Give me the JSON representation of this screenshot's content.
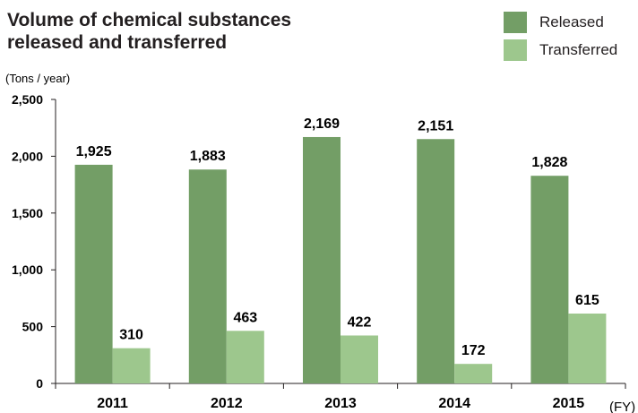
{
  "chart_data": {
    "type": "bar",
    "title_line1": "Volume of chemical substances",
    "title_line2": "released and transferred",
    "ylabel": "(Tons / year)",
    "xlabel": "(FY)",
    "categories": [
      "2011",
      "2012",
      "2013",
      "2014",
      "2015"
    ],
    "series": [
      {
        "name": "Released",
        "color": "#739e66",
        "values": [
          1925,
          1883,
          2169,
          2151,
          1828
        ],
        "labels": [
          "1,925",
          "1,883",
          "2,169",
          "2,151",
          "1,828"
        ]
      },
      {
        "name": "Transferred",
        "color": "#9dc78d",
        "values": [
          310,
          463,
          422,
          172,
          615
        ],
        "labels": [
          "310",
          "463",
          "422",
          "172",
          "615"
        ]
      }
    ],
    "ylim": [
      0,
      2500
    ],
    "yticks": [
      0,
      500,
      1000,
      1500,
      2000,
      2500
    ],
    "ytick_labels": [
      "0",
      "500",
      "1,000",
      "1,500",
      "2,000",
      "2,500"
    ],
    "grid": false,
    "legend_position": "top-right"
  }
}
